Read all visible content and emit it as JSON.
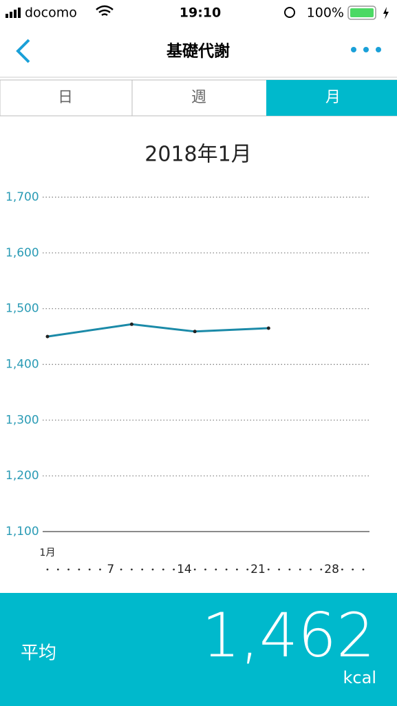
{
  "status_bar": {
    "carrier": "docomo",
    "time": "19:10",
    "battery": "100%"
  },
  "nav": {
    "title": "基礎代謝"
  },
  "tabs": [
    "日",
    "週",
    "月"
  ],
  "chart_data": {
    "type": "line",
    "title": "2018年1月",
    "x": [
      1,
      9,
      15,
      22
    ],
    "series": [
      {
        "name": "基礎代謝",
        "color": "#1b8aa8",
        "values": [
          1450,
          1472,
          1459,
          1465
        ]
      }
    ],
    "xlim": [
      1,
      31
    ],
    "xticks": [
      {
        "value": 1,
        "label": "1月"
      },
      7,
      14,
      21,
      28
    ],
    "ylim": [
      1100,
      1700
    ],
    "yticks": [
      {
        "value": 1100,
        "label": "1,100"
      },
      {
        "value": 1200,
        "label": "1,200"
      },
      {
        "value": 1300,
        "label": "1,300"
      },
      {
        "value": 1400,
        "label": "1,400"
      },
      {
        "value": 1500,
        "label": "1,500"
      },
      {
        "value": 1600,
        "label": "1,600"
      },
      {
        "value": 1700,
        "label": "1,700"
      }
    ],
    "grid": true
  },
  "summary": {
    "label": "平均",
    "value": "1,462",
    "unit": "kcal"
  }
}
